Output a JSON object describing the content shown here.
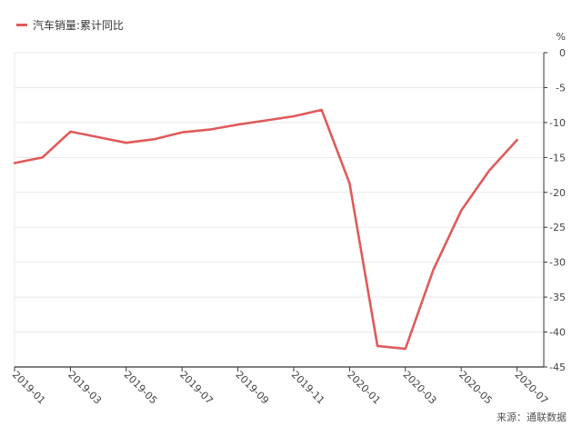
{
  "legend": {
    "label": "汽车销量:累计同比"
  },
  "source": "来源：通联数据",
  "colors": {
    "series": "#e05a5a",
    "grid": "#e8e8e8",
    "axis": "#333333"
  },
  "chart_data": {
    "type": "line",
    "title": "",
    "xlabel": "",
    "ylabel": "",
    "y_unit": "%",
    "y_axis_position": "right",
    "ylim": [
      -45,
      0
    ],
    "yticks": [
      0,
      -5,
      -10,
      -15,
      -20,
      -25,
      -30,
      -35,
      -40,
      -45
    ],
    "grid": true,
    "legend_position": "top-left",
    "x_tick_labels": [
      "2019-01",
      "2019-03",
      "2019-05",
      "2019-07",
      "2019-09",
      "2019-11",
      "2020-01",
      "2020-03",
      "2020-05",
      "2020-07"
    ],
    "x": [
      "2019-01",
      "2019-02",
      "2019-03",
      "2019-04",
      "2019-05",
      "2019-06",
      "2019-07",
      "2019-08",
      "2019-09",
      "2019-10",
      "2019-11",
      "2019-12",
      "2020-01",
      "2020-02",
      "2020-03",
      "2020-04",
      "2020-05",
      "2020-06",
      "2020-07"
    ],
    "series": [
      {
        "name": "汽车销量:累计同比",
        "values": [
          -15.8,
          -15.0,
          -11.3,
          -12.1,
          -12.9,
          -12.4,
          -11.4,
          -11.0,
          -10.3,
          -9.7,
          -9.1,
          -8.2,
          -18.7,
          -42.0,
          -42.4,
          -31.1,
          -22.6,
          -16.9,
          -12.5
        ]
      }
    ]
  }
}
